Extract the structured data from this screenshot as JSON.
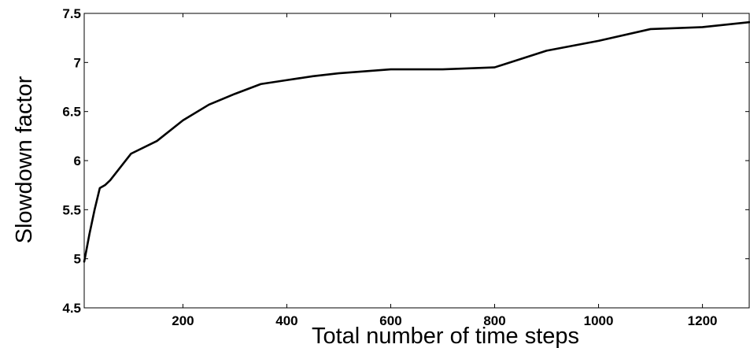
{
  "chart_data": {
    "type": "line",
    "title": "",
    "xlabel": "Total number of time steps",
    "ylabel": "Slowdown factor",
    "xlim": [
      10,
      1290
    ],
    "ylim": [
      4.5,
      7.5
    ],
    "xticks": [
      200,
      400,
      600,
      800,
      1000,
      1200
    ],
    "xtick_labels": [
      "200",
      "400",
      "600",
      "800",
      "1000",
      "1200"
    ],
    "yticks": [
      4.5,
      5,
      5.5,
      6,
      6.5,
      7,
      7.5
    ],
    "ytick_labels": [
      "4.5",
      "5",
      "5.5",
      "6",
      "6.5",
      "7",
      "7.5"
    ],
    "grid": false,
    "line_color": "#000000",
    "series": [
      {
        "x": [
          10,
          20,
          30,
          40,
          50,
          60,
          100,
          150,
          200,
          250,
          300,
          350,
          400,
          450,
          500,
          600,
          700,
          800,
          900,
          1000,
          1100,
          1200,
          1290
        ],
        "values": [
          4.97,
          5.25,
          5.5,
          5.72,
          5.75,
          5.8,
          6.07,
          6.2,
          6.41,
          6.57,
          6.68,
          6.78,
          6.82,
          6.86,
          6.89,
          6.93,
          6.93,
          6.95,
          7.12,
          7.22,
          7.34,
          7.36,
          7.41
        ]
      }
    ]
  }
}
